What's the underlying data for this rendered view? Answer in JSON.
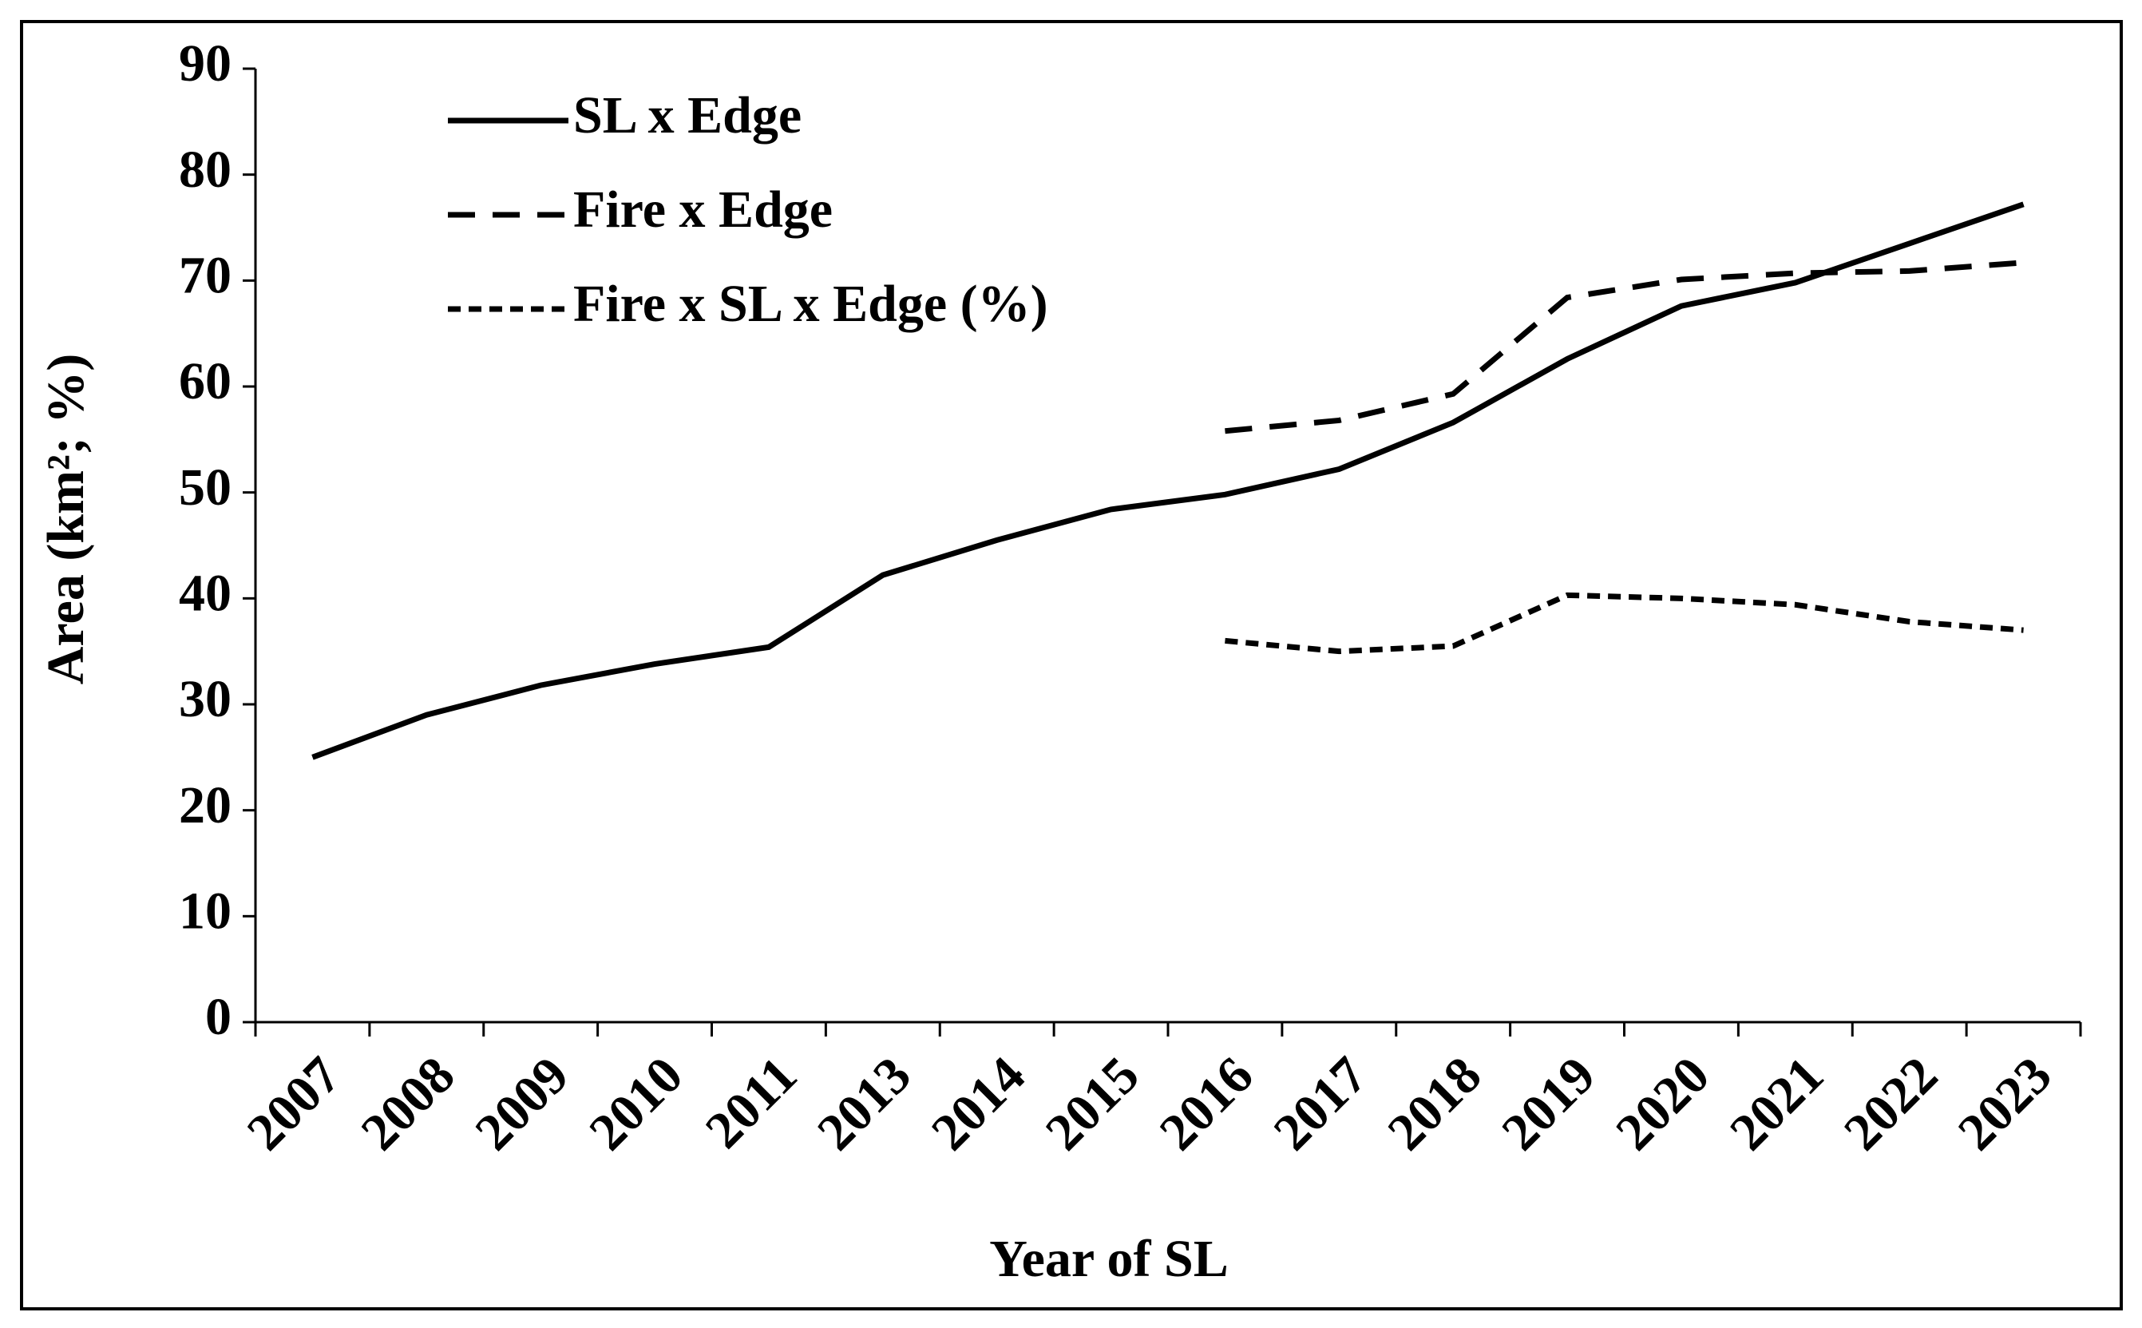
{
  "chart_data": {
    "type": "line",
    "x_label": "Year of SL",
    "y_label": "Area (km²; %)",
    "categories": [
      "2007",
      "2008",
      "2009",
      "2010",
      "2011",
      "2013",
      "2014",
      "2015",
      "2016",
      "2017",
      "2018",
      "2019",
      "2020",
      "2021",
      "2022",
      "2023"
    ],
    "series": [
      {
        "name": "SL x Edge",
        "color": "#000000",
        "dash": "solid",
        "values": [
          25,
          29,
          31.8,
          33.8,
          35.4,
          42.2,
          45.5,
          48.4,
          49.8,
          52.2,
          56.6,
          62.6,
          67.6,
          69.8,
          73.5,
          77.2
        ]
      },
      {
        "name": "Fire x Edge",
        "color": "#000000",
        "dash": "dashed",
        "values": [
          null,
          null,
          null,
          null,
          null,
          null,
          null,
          null,
          55.8,
          56.8,
          59.3,
          68.4,
          70.1,
          70.7,
          70.9,
          71.7
        ]
      },
      {
        "name": "Fire x SL x Edge (%)",
        "color": "#000000",
        "dash": "dotted",
        "values": [
          null,
          null,
          null,
          null,
          null,
          null,
          null,
          null,
          36,
          35,
          35.5,
          40.3,
          40,
          39.4,
          37.8,
          37
        ]
      }
    ],
    "ylim": [
      0,
      90
    ],
    "yticks": [
      0,
      10,
      20,
      30,
      40,
      50,
      60,
      70,
      80,
      90
    ],
    "legend": "top-left"
  }
}
